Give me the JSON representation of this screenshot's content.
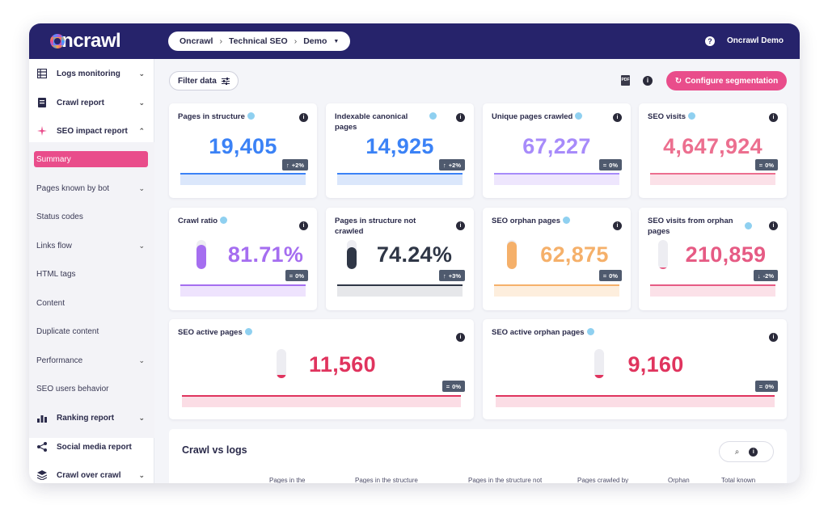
{
  "app": {
    "logo": "oncrawl",
    "user": "Oncrawl Demo"
  },
  "breadcrumb": [
    "Oncrawl",
    "Technical SEO",
    "Demo"
  ],
  "sidebar": {
    "sections": [
      {
        "label": "Logs monitoring",
        "icon": "table-icon"
      },
      {
        "label": "Crawl report",
        "icon": "document-icon"
      },
      {
        "label": "SEO impact report",
        "icon": "sparkle-icon"
      },
      {
        "label": "Ranking report",
        "icon": "bar-chart-icon"
      },
      {
        "label": "Social media report",
        "icon": "share-icon"
      },
      {
        "label": "Crawl over crawl",
        "icon": "layers-icon"
      }
    ],
    "sub_items": [
      "Summary",
      "Pages known by bot",
      "Status codes",
      "Links flow",
      "HTML tags",
      "Content",
      "Duplicate content",
      "Performance",
      "SEO users behavior"
    ]
  },
  "toolbar": {
    "filter_label": "Filter data",
    "config_label": "Configure segmentation",
    "pdf_label": "PDF"
  },
  "cards": [
    {
      "title": "Pages in structure",
      "value": "19,405",
      "change": "+2%",
      "arrow": "↑",
      "color": "#3b82f6"
    },
    {
      "title": "Indexable canonical pages",
      "value": "14,925",
      "change": "+2%",
      "arrow": "↑",
      "color": "#3b82f6"
    },
    {
      "title": "Unique pages crawled",
      "value": "67,227",
      "change": "0%",
      "arrow": "=",
      "color": "#a78bfa"
    },
    {
      "title": "SEO visits",
      "value": "4,647,924",
      "change": "0%",
      "arrow": "=",
      "color": "#ec6f8f"
    },
    {
      "title": "Crawl ratio",
      "value": "81.71%",
      "change": "0%",
      "arrow": "=",
      "color": "#a56ef0",
      "gauge": 0.82
    },
    {
      "title": "Pages in structure not crawled",
      "value": "74.24%",
      "change": "+3%",
      "arrow": "↑",
      "color": "#2f3646",
      "gauge": 0.74
    },
    {
      "title": "SEO orphan pages",
      "value": "62,875",
      "change": "0%",
      "arrow": "=",
      "color": "#f5b06a",
      "gauge": 0.95
    },
    {
      "title": "SEO visits from orphan pages",
      "value": "210,859",
      "change": "-2%",
      "arrow": "↓",
      "color": "#e65b84",
      "gauge": 0.05
    },
    {
      "title": "SEO active pages",
      "value": "11,560",
      "change": "0%",
      "arrow": "=",
      "color": "#e0345e",
      "gauge": 0.1
    },
    {
      "title": "SEO active orphan pages",
      "value": "9,160",
      "change": "0%",
      "arrow": "=",
      "color": "#e0345e",
      "gauge": 0.1
    }
  ],
  "crawl_vs_logs": {
    "title": "Crawl vs logs",
    "columns": [
      "Pages in the",
      "Pages in the structure",
      "Pages in the structure not",
      "Pages crawled by",
      "Orphan",
      "Total known"
    ]
  }
}
